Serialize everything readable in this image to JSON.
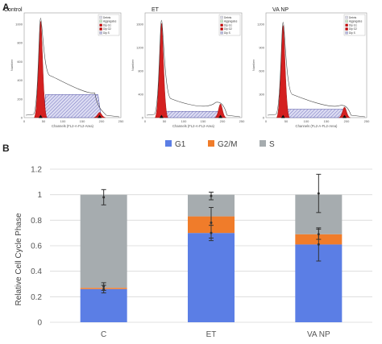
{
  "panel_a": {
    "letter": "A",
    "y_axis_label": "Number",
    "x_axis_label": "Channels (FL2-A-FL2-Area)",
    "legend_items": [
      {
        "label": "Debris",
        "color": "#d9d9e6"
      },
      {
        "label": "Aggregates",
        "color": "#c6e6c6"
      },
      {
        "label": "Dip G1",
        "color": "#cc0000"
      },
      {
        "label": "Dip G2",
        "color": "#cc0000"
      },
      {
        "label": "Dip S",
        "color": "#b8b8e0"
      }
    ],
    "x_ticks": [
      "0",
      "50",
      "100",
      "150",
      "200",
      "250"
    ],
    "histograms": [
      {
        "title": "Control",
        "y_ticks": [
          "0",
          "200",
          "400",
          "600",
          "800",
          "1000"
        ],
        "g1_peak": 0.92,
        "s_level": 0.22,
        "s_hump": 0.4,
        "g2_peak": 0.05
      },
      {
        "title": "ET",
        "y_ticks": [
          "0",
          "400",
          "800",
          "1200",
          "1600"
        ],
        "g1_peak": 0.9,
        "s_level": 0.06,
        "s_hump": 0.18,
        "g2_peak": 0.13
      },
      {
        "title": "VA NP",
        "y_ticks": [
          "0",
          "300",
          "600",
          "900",
          "1200"
        ],
        "g1_peak": 0.88,
        "s_level": 0.08,
        "s_hump": 0.22,
        "g2_peak": 0.1
      }
    ]
  },
  "panel_b": {
    "letter": "B"
  },
  "chart_data": {
    "type": "bar",
    "stacked": true,
    "categories": [
      "C",
      "ET",
      "VA NP"
    ],
    "series": [
      {
        "name": "G1",
        "color": "#5b7ee5",
        "values": [
          0.26,
          0.7,
          0.61
        ]
      },
      {
        "name": "G2/M",
        "color": "#f07c2a",
        "values": [
          0.01,
          0.13,
          0.08
        ]
      },
      {
        "name": "S",
        "color": "#a6acaf",
        "values": [
          0.73,
          0.17,
          0.31
        ]
      }
    ],
    "error_bars": [
      {
        "series": "G1",
        "mean": [
          0.26,
          0.7,
          0.61
        ],
        "err": [
          0.03,
          0.06,
          0.13
        ]
      },
      {
        "series": "G2/M",
        "mean": [
          0.28,
          0.78,
          0.69
        ],
        "err": [
          0.03,
          0.12,
          0.04
        ]
      },
      {
        "series": "S",
        "mean": [
          0.98,
          0.99,
          1.01
        ],
        "err": [
          0.06,
          0.03,
          0.15
        ]
      }
    ],
    "ylabel": "Relative Cell Cycle Phase",
    "ylim": [
      0,
      1.2
    ],
    "yticks": [
      "0",
      "0.2",
      "0.4",
      "0.6",
      "0.8",
      "1",
      "1.2"
    ],
    "grid": true,
    "legend_position": "top"
  }
}
